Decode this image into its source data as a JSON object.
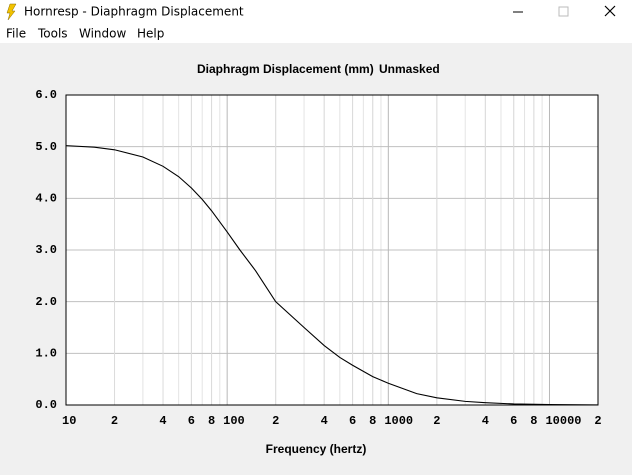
{
  "window": {
    "title": "Hornresp - Diaphragm Displacement"
  },
  "menu": [
    "File",
    "Tools",
    "Window",
    "Help"
  ],
  "chart_data": {
    "type": "line",
    "title": "Diaphragm Displacement (mm)",
    "subtitle": "Unmasked",
    "xlabel": "Frequency (hertz)",
    "log_x": true,
    "grid": true,
    "color": "#000000",
    "x": [
      10,
      15,
      20,
      30,
      40,
      50,
      60,
      70,
      80,
      100,
      120,
      150,
      200,
      300,
      400,
      500,
      600,
      800,
      1000,
      1500,
      2000,
      3000,
      4000,
      6000,
      10000,
      20000
    ],
    "values": [
      5.02,
      4.99,
      4.94,
      4.8,
      4.62,
      4.42,
      4.2,
      3.98,
      3.76,
      3.35,
      3.0,
      2.6,
      2.0,
      1.5,
      1.15,
      0.92,
      0.77,
      0.55,
      0.42,
      0.22,
      0.14,
      0.07,
      0.045,
      0.02,
      0.008,
      0.002
    ],
    "xlim": [
      10,
      20000
    ],
    "ylim": [
      0,
      6
    ],
    "xticks": [
      10,
      {
        "value": 20,
        "label": "2"
      },
      {
        "value": 40,
        "label": "4"
      },
      {
        "value": 60,
        "label": "6"
      },
      {
        "value": 80,
        "label": "8"
      },
      100,
      {
        "value": 200,
        "label": "2"
      },
      {
        "value": 400,
        "label": "4"
      },
      {
        "value": 600,
        "label": "6"
      },
      {
        "value": 800,
        "label": "8"
      },
      1000,
      {
        "value": 2000,
        "label": "2"
      },
      {
        "value": 4000,
        "label": "4"
      },
      {
        "value": 6000,
        "label": "6"
      },
      {
        "value": 8000,
        "label": "8"
      },
      10000,
      {
        "value": 20000,
        "label": "2"
      }
    ],
    "yticks": [
      {
        "value": 0,
        "label": "0.0"
      },
      {
        "value": 1,
        "label": "1.0"
      },
      {
        "value": 2,
        "label": "2.0"
      },
      {
        "value": 3,
        "label": "3.0"
      },
      {
        "value": 4,
        "label": "4.0"
      },
      {
        "value": 5,
        "label": "5.0"
      },
      {
        "value": 6,
        "label": "6.0"
      }
    ]
  }
}
